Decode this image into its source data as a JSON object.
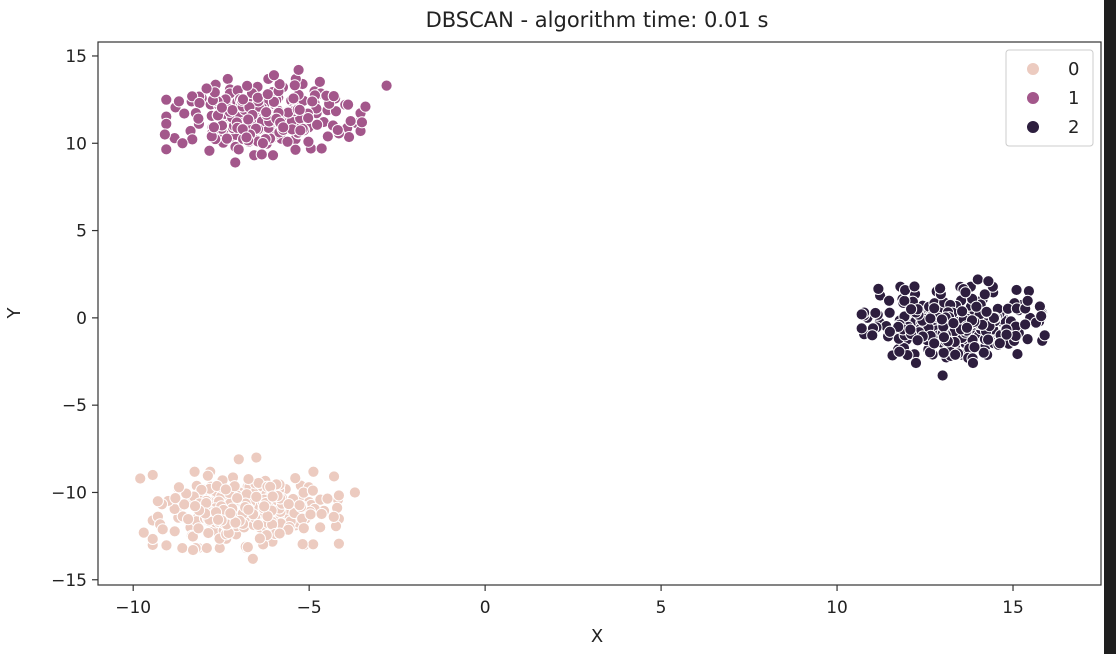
{
  "chart_data": {
    "type": "scatter",
    "title": "DBSCAN - algorithm time: 0.01 s",
    "xlabel": "X",
    "ylabel": "Y",
    "xlim": [
      -11,
      17.5
    ],
    "ylim": [
      -15.3,
      15.8
    ],
    "xticks": [
      -10,
      -5,
      0,
      5,
      10,
      15
    ],
    "yticks": [
      -15,
      -10,
      -5,
      0,
      5,
      10,
      15
    ],
    "grid": false,
    "legend_position": "top-right",
    "point_edge_color": "#ffffff",
    "series": [
      {
        "name": "0",
        "color": "#eccbc0",
        "center": [
          -6.8,
          -11.0
        ],
        "spread": [
          1.15,
          0.95
        ],
        "count": 300,
        "points": [
          [
            -9.8,
            -9.2
          ],
          [
            -9.7,
            -12.3
          ],
          [
            -9.3,
            -10.5
          ],
          [
            -3.7,
            -10.0
          ],
          [
            -4.3,
            -11.4
          ],
          [
            -6.6,
            -13.8
          ],
          [
            -6.5,
            -8.0
          ],
          [
            -7.0,
            -8.1
          ],
          [
            -8.7,
            -9.7
          ],
          [
            -8.3,
            -13.3
          ]
        ]
      },
      {
        "name": "1",
        "color": "#a3578b",
        "center": [
          -6.3,
          11.5
        ],
        "spread": [
          1.2,
          0.95
        ],
        "count": 300,
        "points": [
          [
            -9.1,
            10.5
          ],
          [
            -8.7,
            12.4
          ],
          [
            -2.8,
            13.3
          ],
          [
            -3.5,
            11.2
          ],
          [
            -3.4,
            12.1
          ],
          [
            -7.1,
            8.9
          ],
          [
            -5.3,
            14.2
          ],
          [
            -6.0,
            13.9
          ],
          [
            -4.3,
            12.7
          ],
          [
            -8.6,
            10.0
          ]
        ]
      },
      {
        "name": "2",
        "color": "#2d1e3e",
        "center": [
          13.3,
          -0.4
        ],
        "spread": [
          1.1,
          0.95
        ],
        "count": 300,
        "points": [
          [
            10.7,
            0.2
          ],
          [
            10.7,
            -0.6
          ],
          [
            15.9,
            -1.0
          ],
          [
            15.8,
            0.1
          ],
          [
            14.0,
            2.2
          ],
          [
            14.3,
            2.1
          ],
          [
            13.0,
            -3.3
          ],
          [
            11.0,
            -1.0
          ],
          [
            15.1,
            1.6
          ],
          [
            12.2,
            1.8
          ]
        ]
      }
    ]
  }
}
